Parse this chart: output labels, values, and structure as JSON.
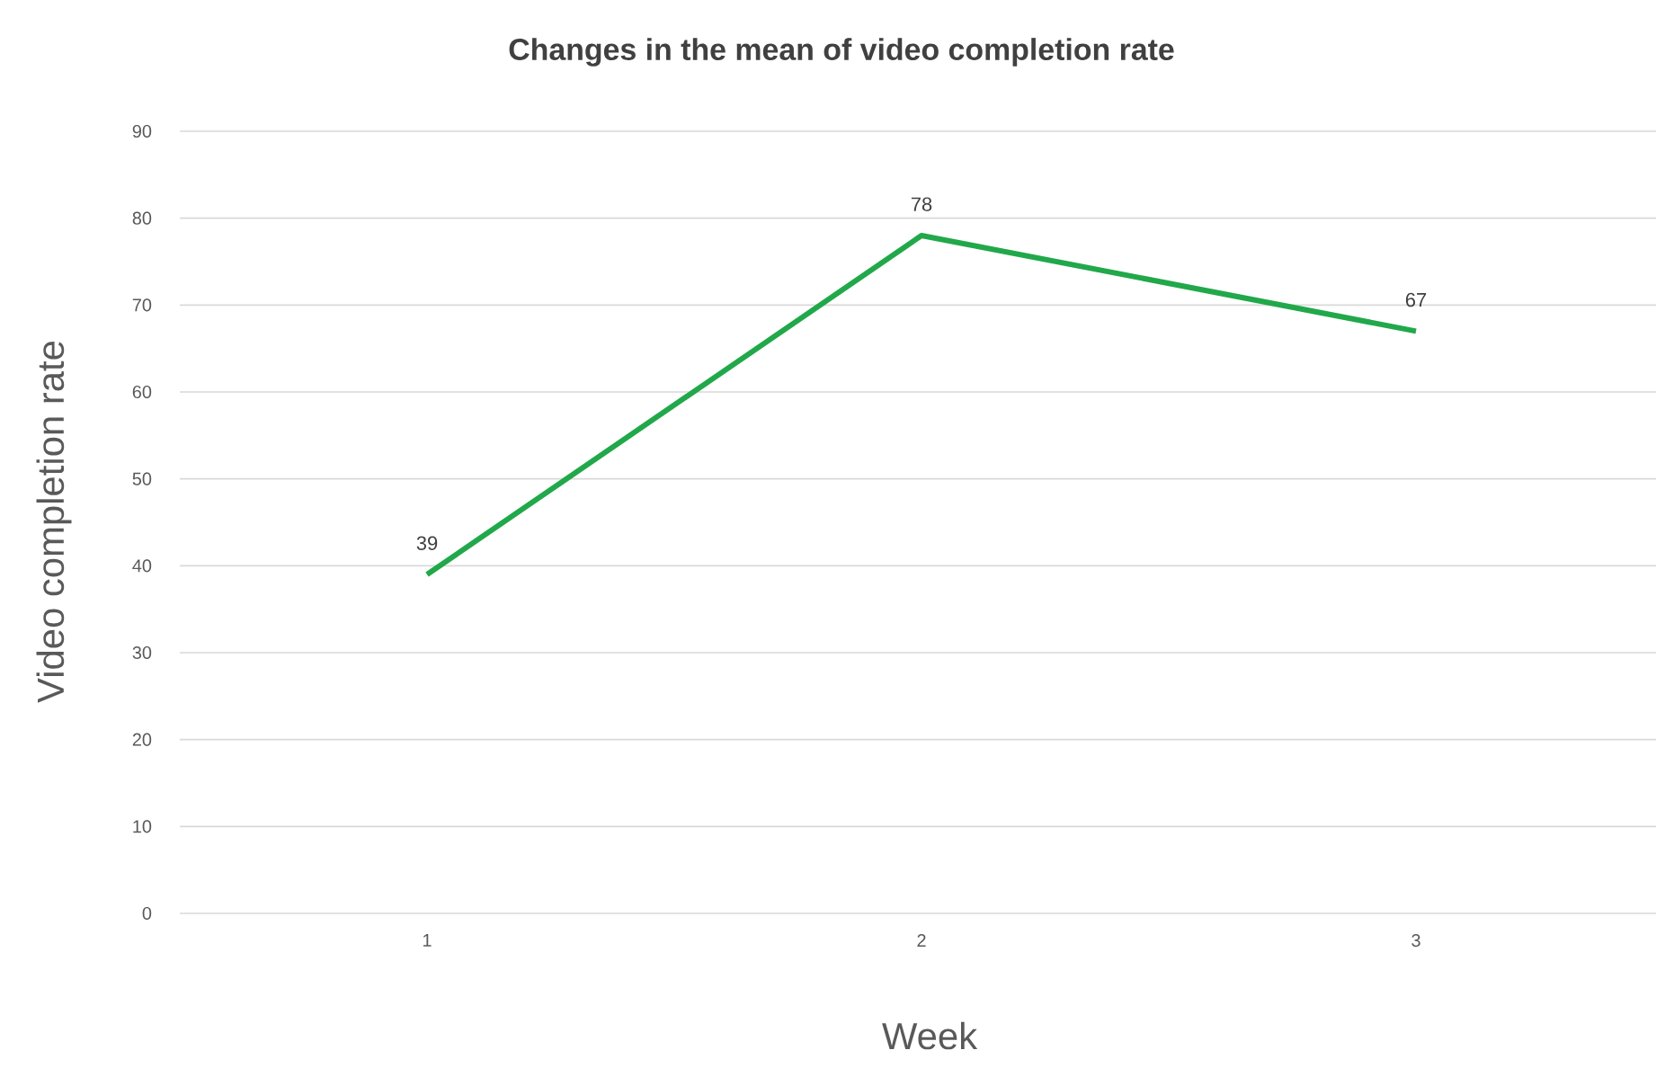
{
  "chart_data": {
    "type": "line",
    "title": "Changes in the mean of video completion rate",
    "xlabel": "Week",
    "ylabel": "Video completion rate",
    "categories": [
      "1",
      "2",
      "3"
    ],
    "series": [
      {
        "color": "#21a84a",
        "values": [
          39,
          78,
          67
        ]
      }
    ],
    "ylim": [
      0,
      90
    ],
    "yticks": [
      0,
      10,
      20,
      30,
      40,
      50,
      60,
      70,
      80,
      90
    ],
    "grid": "y",
    "data_labels": true,
    "marker": "none",
    "line_style": "solid"
  }
}
